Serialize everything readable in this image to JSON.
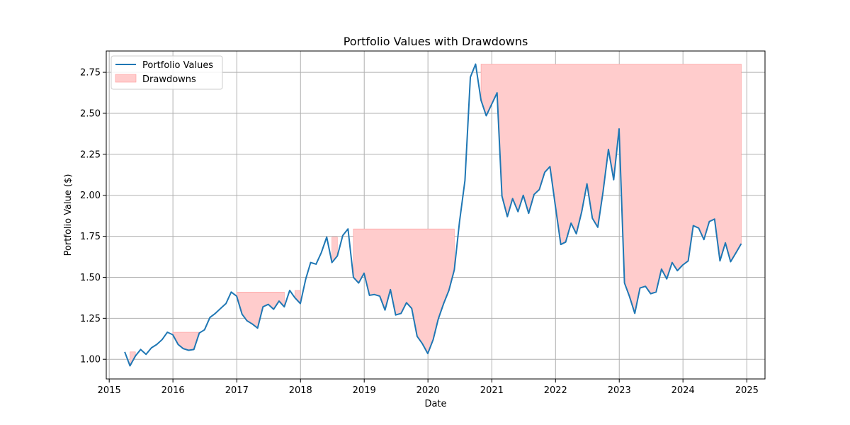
{
  "chart_data": {
    "type": "line",
    "title": "Portfolio Values with Drawdowns",
    "xlabel": "Date",
    "ylabel": "Portfolio Value ($)",
    "xlim": [
      "2014-12-15",
      "2025-04-15"
    ],
    "ylim": [
      0.88,
      2.88
    ],
    "x_ticks": [
      "2015",
      "2016",
      "2017",
      "2018",
      "2019",
      "2020",
      "2021",
      "2022",
      "2023",
      "2024",
      "2025"
    ],
    "y_ticks": [
      "1.00",
      "1.25",
      "1.50",
      "1.75",
      "2.00",
      "2.25",
      "2.50",
      "2.75"
    ],
    "grid": true,
    "legend": {
      "placement": "top-left",
      "entries": [
        "Portfolio Values",
        "Drawdowns"
      ]
    },
    "colors": {
      "line": "#1f77b4",
      "drawdown_fill": "#ffcccc",
      "drawdown_edge": "#ff9999",
      "grid": "#b0b0b0"
    },
    "series": [
      {
        "name": "Portfolio Values",
        "x": [
          "2015-03-31",
          "2015-04-30",
          "2015-05-31",
          "2015-06-30",
          "2015-07-31",
          "2015-08-31",
          "2015-09-30",
          "2015-10-31",
          "2015-11-30",
          "2015-12-31",
          "2016-01-31",
          "2016-02-29",
          "2016-03-31",
          "2016-04-30",
          "2016-05-31",
          "2016-06-30",
          "2016-07-31",
          "2016-08-31",
          "2016-09-30",
          "2016-10-31",
          "2016-11-30",
          "2016-12-31",
          "2017-01-31",
          "2017-02-28",
          "2017-03-31",
          "2017-04-30",
          "2017-05-31",
          "2017-06-30",
          "2017-07-31",
          "2017-08-31",
          "2017-09-30",
          "2017-10-31",
          "2017-11-30",
          "2017-12-31",
          "2018-01-31",
          "2018-02-28",
          "2018-03-31",
          "2018-04-30",
          "2018-05-31",
          "2018-06-30",
          "2018-07-31",
          "2018-08-31",
          "2018-09-30",
          "2018-10-31",
          "2018-11-30",
          "2018-12-31",
          "2019-01-31",
          "2019-02-28",
          "2019-03-31",
          "2019-04-30",
          "2019-05-31",
          "2019-06-30",
          "2019-07-31",
          "2019-08-31",
          "2019-09-30",
          "2019-10-31",
          "2019-11-30",
          "2019-12-31",
          "2020-01-31",
          "2020-02-29",
          "2020-03-31",
          "2020-04-30",
          "2020-05-31",
          "2020-06-30",
          "2020-07-31",
          "2020-08-31",
          "2020-09-30",
          "2020-10-31",
          "2020-11-30",
          "2020-12-31",
          "2021-01-31",
          "2021-02-28",
          "2021-03-31",
          "2021-04-30",
          "2021-05-31",
          "2021-06-30",
          "2021-07-31",
          "2021-08-31",
          "2021-09-30",
          "2021-10-31",
          "2021-11-30",
          "2021-12-31",
          "2022-01-31",
          "2022-02-28",
          "2022-03-31",
          "2022-04-30",
          "2022-05-31",
          "2022-06-30",
          "2022-07-31",
          "2022-08-31",
          "2022-09-30",
          "2022-10-31",
          "2022-11-30",
          "2022-12-31",
          "2023-01-31",
          "2023-02-28",
          "2023-03-31",
          "2023-04-30",
          "2023-05-31",
          "2023-06-30",
          "2023-07-31",
          "2023-08-31",
          "2023-09-30",
          "2023-10-31",
          "2023-11-30",
          "2023-12-31",
          "2024-01-31",
          "2024-02-29",
          "2024-03-31",
          "2024-04-30",
          "2024-05-31",
          "2024-06-30",
          "2024-07-31",
          "2024-08-31",
          "2024-09-30",
          "2024-10-31",
          "2024-11-30"
        ],
        "values": [
          1.045,
          0.96,
          1.02,
          1.06,
          1.03,
          1.07,
          1.09,
          1.12,
          1.165,
          1.15,
          1.09,
          1.065,
          1.055,
          1.06,
          1.16,
          1.18,
          1.255,
          1.28,
          1.31,
          1.34,
          1.41,
          1.385,
          1.275,
          1.235,
          1.215,
          1.19,
          1.32,
          1.335,
          1.305,
          1.355,
          1.32,
          1.42,
          1.375,
          1.34,
          1.49,
          1.59,
          1.58,
          1.65,
          1.745,
          1.59,
          1.63,
          1.755,
          1.795,
          1.5,
          1.465,
          1.525,
          1.39,
          1.395,
          1.385,
          1.3,
          1.425,
          1.27,
          1.28,
          1.345,
          1.31,
          1.14,
          1.095,
          1.035,
          1.12,
          1.245,
          1.34,
          1.42,
          1.545,
          1.84,
          2.09,
          2.72,
          2.8,
          2.58,
          2.485,
          2.555,
          2.625,
          1.995,
          1.87,
          1.98,
          1.9,
          2.0,
          1.89,
          2.005,
          2.035,
          2.14,
          2.175,
          1.935,
          1.7,
          1.715,
          1.83,
          1.765,
          1.9,
          2.07,
          1.86,
          1.805,
          2.02,
          2.28,
          2.095,
          2.405,
          1.465,
          1.385,
          1.28,
          1.435,
          1.445,
          1.4,
          1.41,
          1.55,
          1.49,
          1.59,
          1.54,
          1.575,
          1.6,
          1.815,
          1.8,
          1.73,
          1.84,
          1.855,
          1.6,
          1.71,
          1.595,
          1.65,
          1.705
        ]
      }
    ]
  }
}
